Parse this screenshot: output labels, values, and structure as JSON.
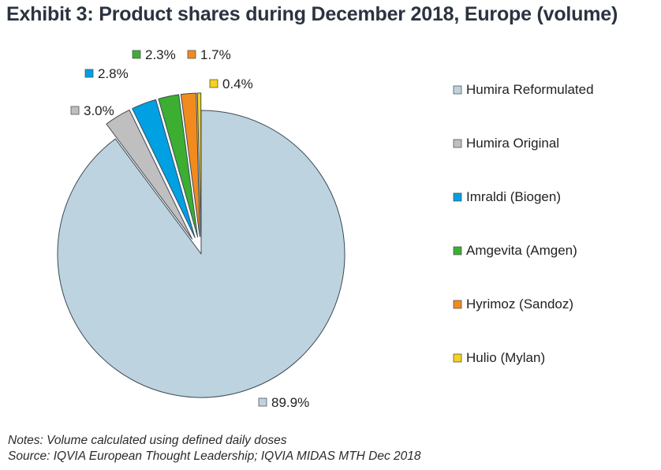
{
  "title": "Exhibit 3: Product shares during December 2018, Europe (volume)",
  "notes": "Notes: Volume calculated using defined daily doses",
  "source": "Source: IQVIA European Thought Leadership; IQVIA MIDAS MTH Dec 2018",
  "chart_data": {
    "type": "pie",
    "title": "Exhibit 3: Product shares during December 2018, Europe (volume)",
    "legend_position": "right",
    "exploded_slices": [
      "Humira Original",
      "Imraldi (Biogen)",
      "Amgevita (Amgen)",
      "Hyrimoz (Sandoz)",
      "Hulio (Mylan)"
    ],
    "slices": [
      {
        "name": "Humira Reformulated",
        "value": 89.9,
        "label": "89.9%",
        "color": "#bdd3e0"
      },
      {
        "name": "Humira Original",
        "value": 3.0,
        "label": "3.0%",
        "color": "#bfbfbf"
      },
      {
        "name": "Imraldi (Biogen)",
        "value": 2.8,
        "label": "2.8%",
        "color": "#00a0e3"
      },
      {
        "name": "Amgevita (Amgen)",
        "value": 2.3,
        "label": "2.3%",
        "color": "#3cae32"
      },
      {
        "name": "Hyrimoz (Sandoz)",
        "value": 1.7,
        "label": "1.7%",
        "color": "#f28a1e"
      },
      {
        "name": "Hulio (Mylan)",
        "value": 0.4,
        "label": "0.4%",
        "color": "#f7d21a"
      }
    ]
  }
}
